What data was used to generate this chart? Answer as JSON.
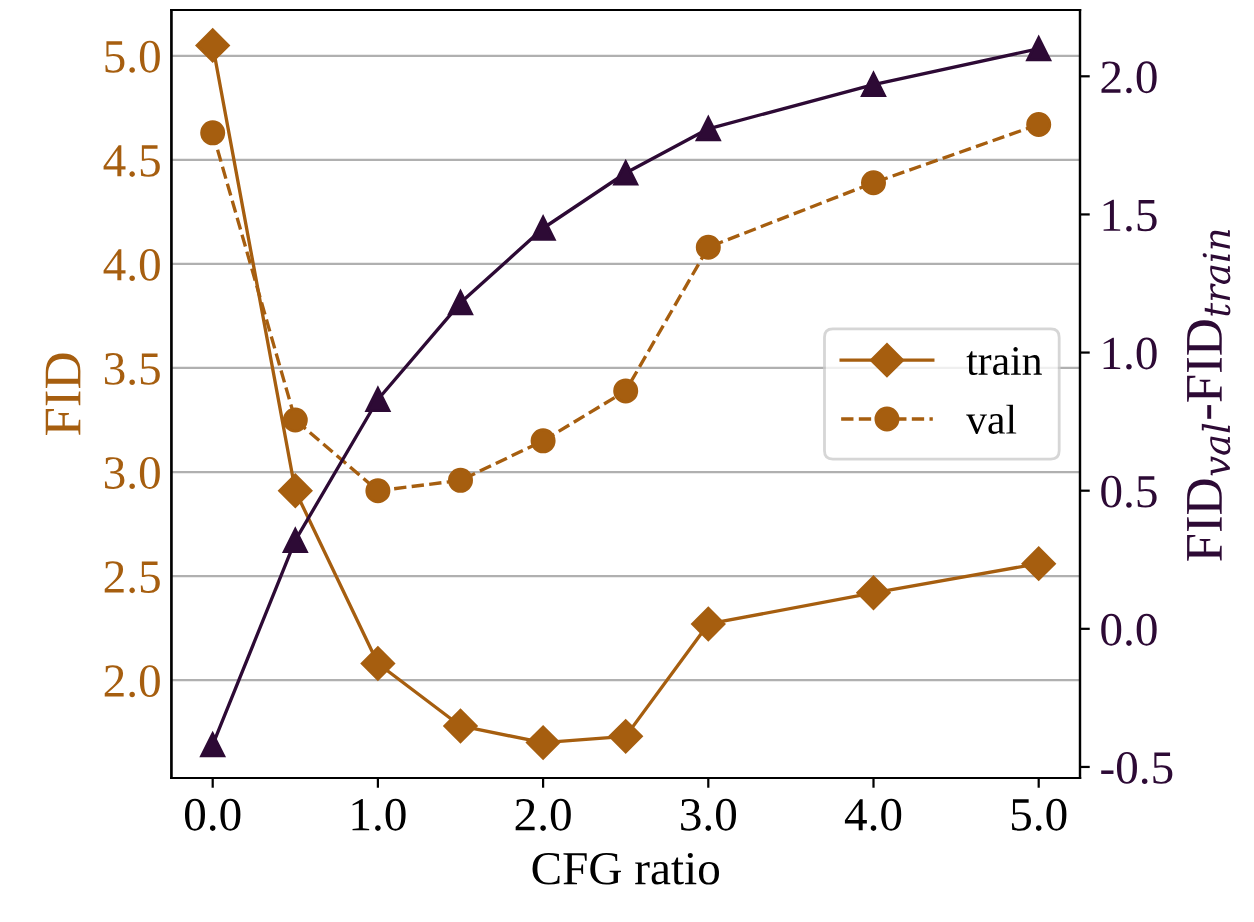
{
  "chart_data": {
    "type": "line",
    "x": [
      0,
      0.5,
      1,
      1.5,
      2,
      2.5,
      3,
      4,
      5
    ],
    "xlabel": "CFG ratio",
    "ylabel": "FID",
    "y2label": "FID$_{val}$-FID$_{train}$",
    "series": [
      {
        "name": "train",
        "color": "#a65e0f",
        "marker": "diamond",
        "line_style": "solid",
        "values": [
          5.05,
          2.91,
          2.08,
          1.78,
          1.7,
          1.73,
          2.27,
          2.42,
          2.56
        ]
      },
      {
        "name": "val",
        "color": "#a65e0f",
        "marker": "circle",
        "line_style": "dashed",
        "values": [
          4.63,
          3.25,
          2.91,
          2.96,
          3.15,
          3.39,
          4.08,
          4.39,
          4.67
        ]
      },
      {
        "color": "#2d0a35",
        "marker": "triangle",
        "line_style": "solid",
        "axis": "y2",
        "values": [
          -0.42,
          0.32,
          0.83,
          1.18,
          1.45,
          1.65,
          1.81,
          1.97,
          2.1
        ]
      }
    ],
    "xlim": [
      -0.25,
      5.25
    ],
    "xticks": [
      {
        "value": 0,
        "label": "0.0"
      },
      {
        "value": 1,
        "label": "1.0"
      },
      {
        "value": 2,
        "label": "2.0"
      },
      {
        "value": 3,
        "label": "3.0"
      },
      {
        "value": 4,
        "label": "4.0"
      },
      {
        "value": 5,
        "label": "5.0"
      }
    ],
    "ylim": [
      1.53,
      5.22
    ],
    "yticks": [
      {
        "value": 2,
        "label": "2.0"
      },
      2.5,
      {
        "value": 3,
        "label": "3.0"
      },
      3.5,
      {
        "value": 4,
        "label": "4.0"
      },
      4.5,
      {
        "value": 5,
        "label": "5.0"
      }
    ],
    "y2lim": [
      -0.54,
      2.24
    ],
    "y2ticks": [
      -0.5,
      {
        "value": 0,
        "label": "0.0"
      },
      0.5,
      {
        "value": 1,
        "label": "1.0"
      },
      1.5,
      {
        "value": 2,
        "label": "2.0"
      }
    ],
    "grid": "y",
    "legend": "right"
  }
}
